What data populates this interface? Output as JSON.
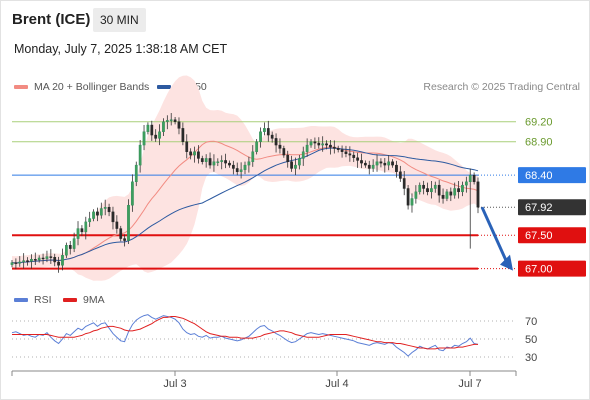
{
  "header": {
    "title": "Brent (ICE)",
    "timeframe": "30 MIN",
    "datetime": "Monday, July 7, 2025 1:38:18 AM CET"
  },
  "legend": {
    "ma20": {
      "label": "MA 20 + Bollinger Bands",
      "color": "#f28b82"
    },
    "ma50": {
      "label": "MA 50",
      "color": "#2d5aa0"
    },
    "credit": "Research © 2025 Trading Central"
  },
  "rsi_legend": {
    "rsi": {
      "label": "RSI",
      "color": "#5b7fd6"
    },
    "ma9": {
      "label": "9MA",
      "color": "#e02020"
    }
  },
  "chart_data": [
    {
      "type": "candlestick",
      "yrange": [
        66.8,
        69.45
      ],
      "x_tick_labels": [
        "Jul 3",
        "Jul 4",
        "Jul 7"
      ],
      "last_price": 67.92,
      "levels": [
        {
          "label": "69.20",
          "value": 69.2,
          "kind": "resistance",
          "color": "#a9cf7a"
        },
        {
          "label": "68.90",
          "value": 68.9,
          "kind": "resistance",
          "color": "#a9cf7a"
        },
        {
          "label": "68.40",
          "value": 68.4,
          "kind": "pivot",
          "color": "#2f7ae5"
        },
        {
          "label": "67.92",
          "value": 67.92,
          "kind": "last",
          "color": "#333333"
        },
        {
          "label": "67.50",
          "value": 67.5,
          "kind": "support",
          "color": "#e01010"
        },
        {
          "label": "67.00",
          "value": 67.0,
          "kind": "support",
          "color": "#e01010"
        }
      ],
      "close": [
        67.09,
        67.08,
        67.1,
        67.12,
        67.11,
        67.14,
        67.13,
        67.16,
        67.15,
        67.18,
        67.17,
        67.1,
        67.05,
        67.2,
        67.35,
        67.3,
        67.45,
        67.6,
        67.55,
        67.7,
        67.75,
        67.85,
        67.8,
        67.9,
        67.92,
        67.85,
        67.7,
        67.6,
        67.45,
        67.42,
        67.95,
        68.3,
        68.55,
        68.85,
        69.05,
        69.15,
        69.0,
        68.95,
        69.05,
        69.2,
        69.22,
        69.23,
        69.2,
        69.1,
        68.9,
        68.75,
        68.7,
        68.75,
        68.65,
        68.6,
        68.65,
        68.55,
        68.6,
        68.6,
        68.62,
        68.58,
        68.55,
        68.5,
        68.45,
        68.48,
        68.55,
        68.6,
        68.75,
        68.9,
        69.05,
        69.1,
        69.0,
        68.95,
        68.85,
        68.8,
        68.7,
        68.6,
        68.5,
        68.55,
        68.65,
        68.75,
        68.85,
        68.9,
        68.88,
        68.85,
        68.87,
        68.85,
        68.82,
        68.8,
        68.78,
        68.75,
        68.72,
        68.7,
        68.66,
        68.62,
        68.58,
        68.55,
        68.5,
        68.55,
        68.6,
        68.58,
        68.55,
        68.6,
        68.55,
        68.45,
        68.35,
        68.2,
        67.95,
        68.05,
        68.15,
        68.25,
        68.2,
        68.15,
        68.2,
        68.25,
        68.1,
        68.05,
        68.15,
        68.1,
        68.2,
        68.15,
        68.25,
        68.3,
        68.4,
        68.3,
        67.92
      ],
      "rsi": {
        "range": [
          20,
          80
        ],
        "levels": [
          70,
          50,
          30
        ],
        "level_labels": [
          "70",
          "50",
          "30"
        ],
        "rsi_values": [
          57,
          58,
          56,
          54,
          55,
          53,
          52,
          55,
          54,
          57,
          52,
          48,
          45,
          50,
          56,
          54,
          58,
          62,
          60,
          64,
          66,
          68,
          64,
          67,
          68,
          62,
          56,
          52,
          48,
          47,
          58,
          66,
          71,
          74,
          76,
          77,
          74,
          72,
          74,
          76,
          75,
          74,
          72,
          68,
          61,
          57,
          55,
          56,
          53,
          52,
          54,
          51,
          52,
          52,
          53,
          51,
          50,
          49,
          48,
          49,
          51,
          53,
          57,
          61,
          64,
          65,
          61,
          59,
          56,
          54,
          51,
          48,
          46,
          47,
          50,
          53,
          56,
          57,
          56,
          55,
          56,
          55,
          54,
          53,
          52,
          51,
          50,
          49,
          48,
          46,
          45,
          44,
          43,
          45,
          46,
          45,
          44,
          46,
          45,
          41,
          38,
          35,
          31,
          35,
          38,
          42,
          40,
          39,
          41,
          43,
          38,
          37,
          41,
          40,
          43,
          42,
          45,
          47,
          51,
          45,
          44
        ],
        "ma9_values": [
          55,
          55,
          55,
          55,
          55,
          55,
          55,
          55,
          55,
          55,
          54,
          53,
          52,
          52,
          52,
          52,
          52,
          53,
          54,
          56,
          57,
          59,
          60,
          62,
          63,
          64,
          64,
          63,
          62,
          60,
          59,
          59,
          60,
          61,
          63,
          65,
          67,
          70,
          72,
          74,
          74,
          75,
          75,
          74,
          73,
          71,
          69,
          67,
          64,
          61,
          58,
          56,
          55,
          54,
          53,
          53,
          52,
          52,
          52,
          51,
          51,
          51,
          51,
          52,
          53,
          55,
          56,
          57,
          58,
          59,
          59,
          58,
          57,
          55,
          54,
          53,
          52,
          52,
          52,
          52,
          53,
          54,
          55,
          55,
          55,
          55,
          55,
          54,
          53,
          52,
          51,
          50,
          49,
          48,
          47,
          47,
          46,
          46,
          46,
          45,
          45,
          44,
          43,
          42,
          41,
          40,
          40,
          39,
          39,
          39,
          40,
          40,
          40,
          40,
          40,
          41,
          41,
          42,
          43,
          44,
          44
        ]
      }
    }
  ]
}
